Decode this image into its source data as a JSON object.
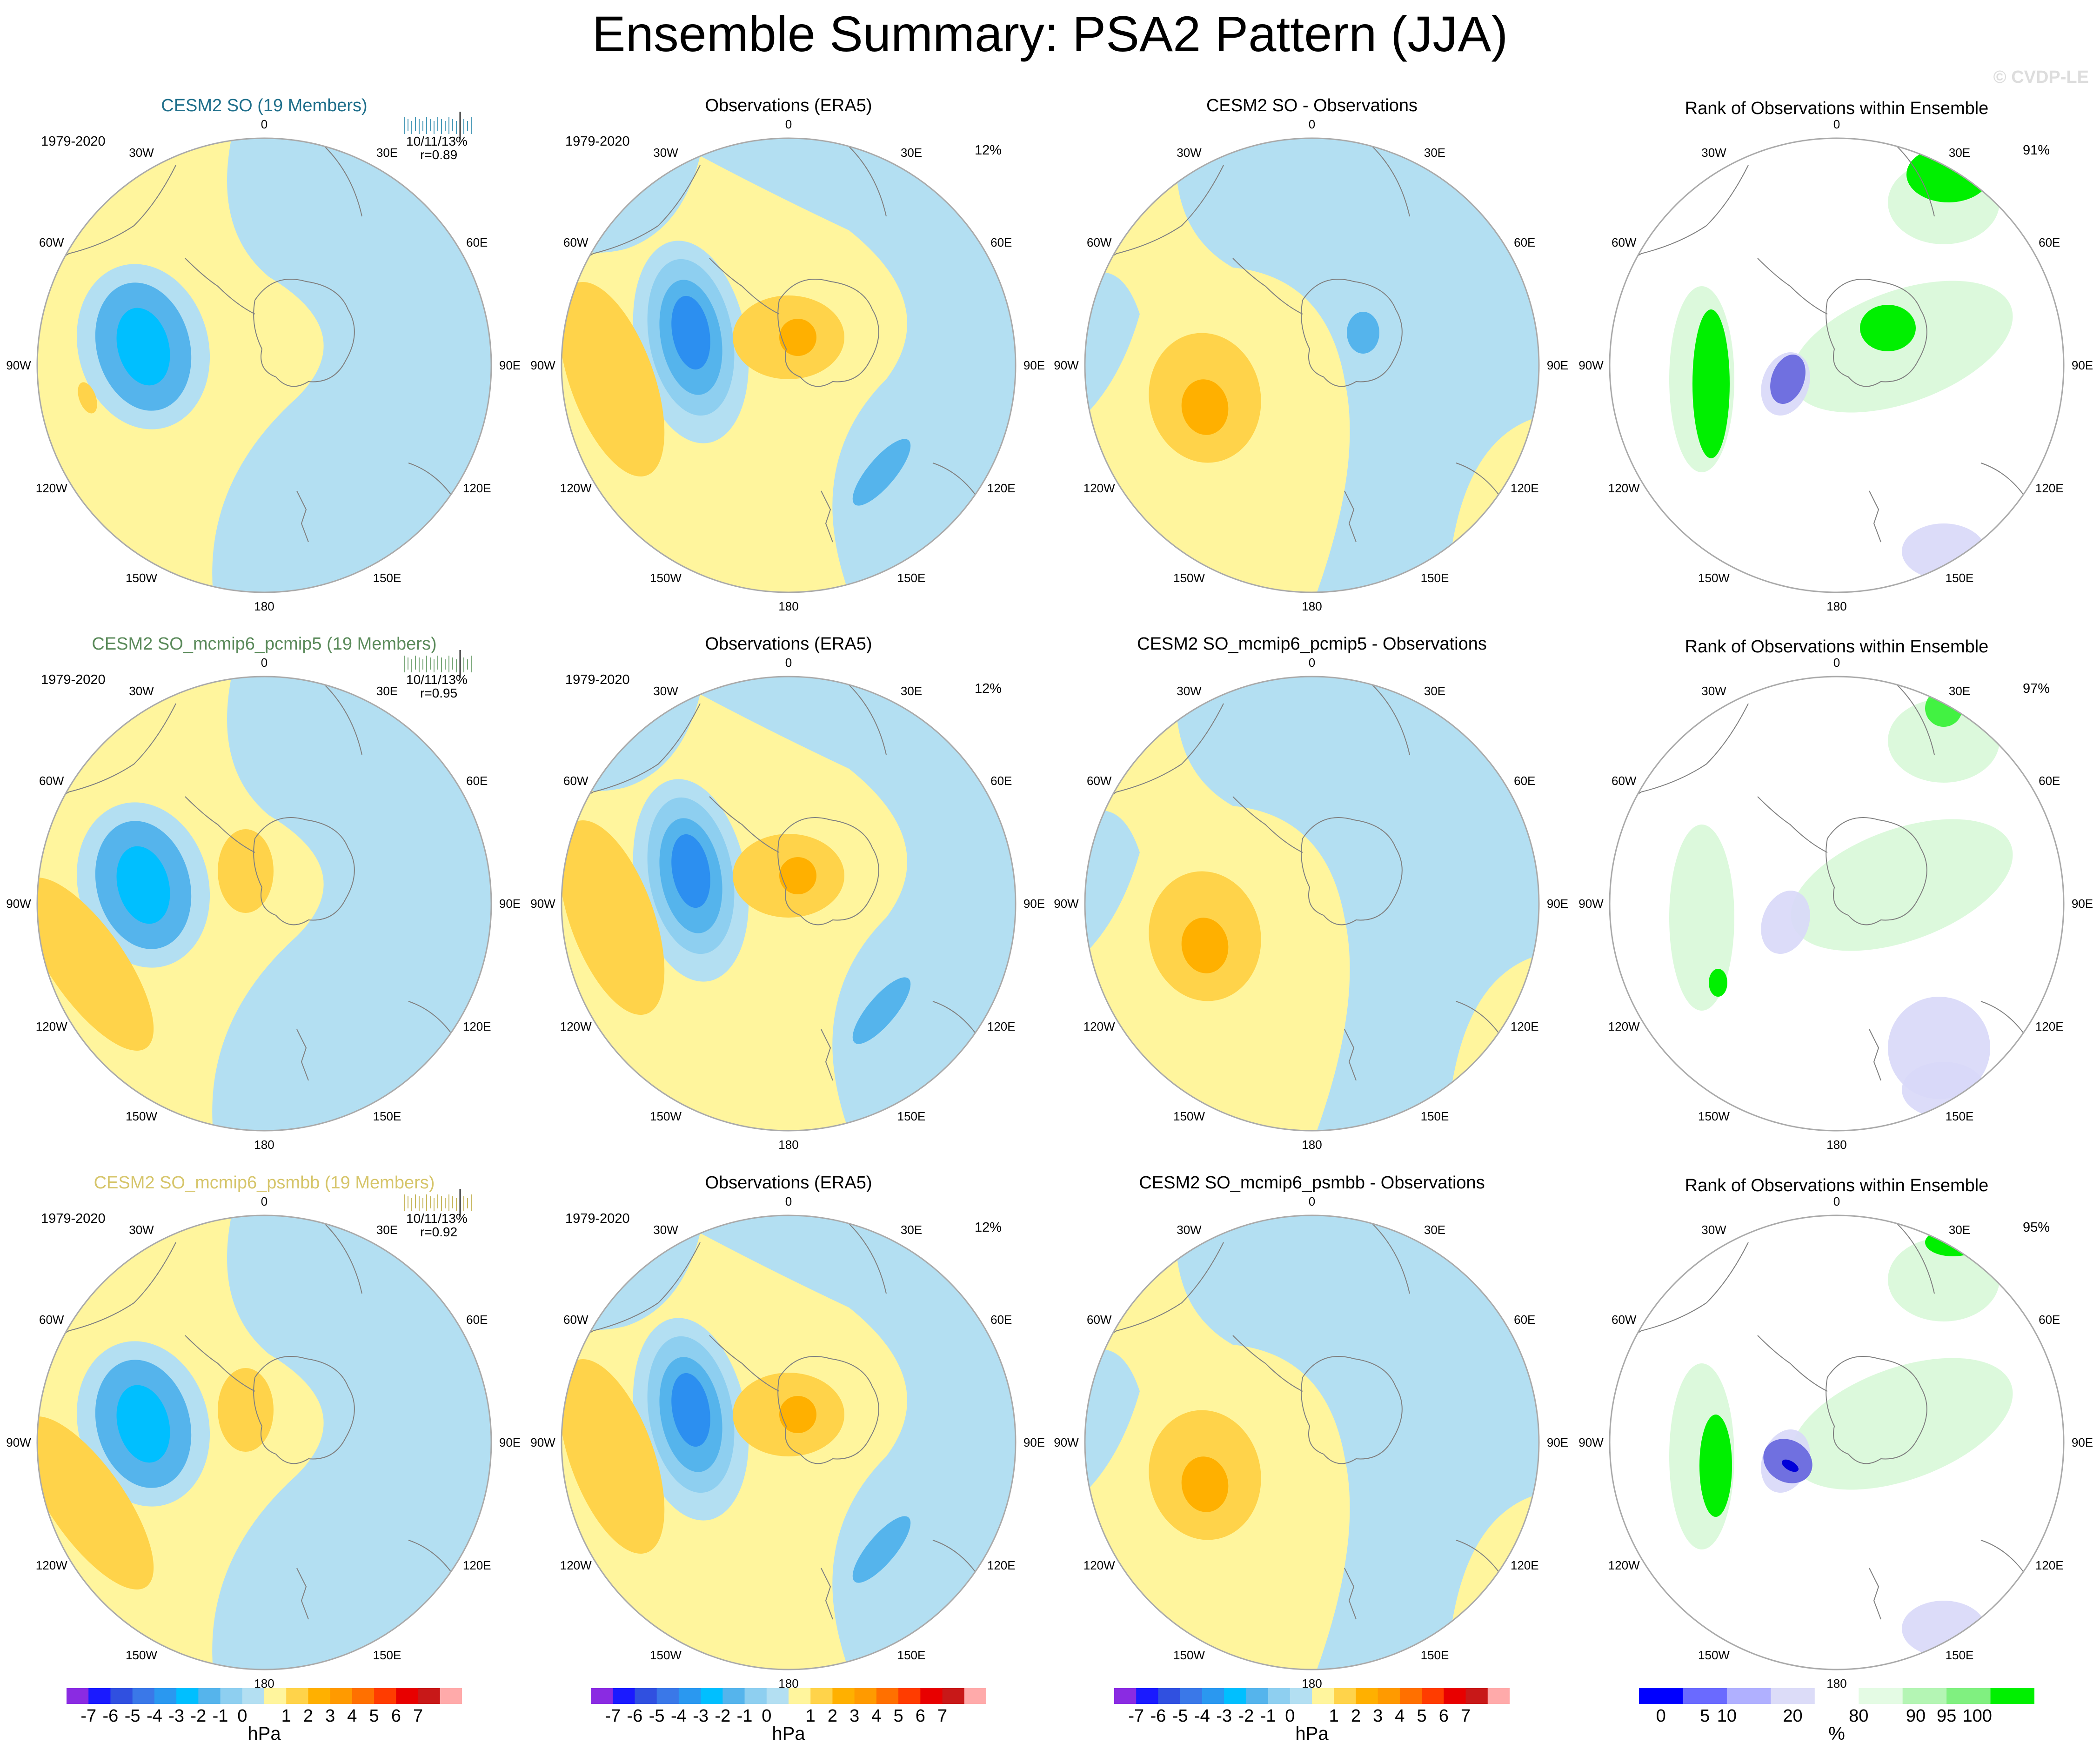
{
  "title": "Ensemble Summary: PSA2 Pattern (JJA)",
  "watermark": "© CVDP-LE",
  "colors": {
    "yellow": "#fff59d",
    "light_blue": "#b3dff2",
    "blue1": "#8ecff0",
    "blue2": "#55b4ec",
    "blue3": "#00bfff",
    "blue4": "#2c8ff0",
    "blue5": "#3a6fe0",
    "orange1": "#ffd34a",
    "orange2": "#ffb000",
    "orange3": "#ff9a00",
    "green_bright": "#00f000",
    "green_light": "#d8f8d8",
    "lavender": "#d8d8f8",
    "violet": "#7070e0",
    "dark_blue": "#0000d8",
    "continent": "#808080",
    "border": "#aaaaaa"
  },
  "longitude_labels": [
    "0",
    "30E",
    "60E",
    "90E",
    "120E",
    "150E",
    "180",
    "150W",
    "120W",
    "90W",
    "60W",
    "30W"
  ],
  "rows": [
    {
      "model_title": "CESM2 SO (19 Members)",
      "model_color": "#1f6f8b",
      "mini_line_color": "#4a9ab8",
      "stats_pct": "10/11/13%",
      "stats_r": "r=0.89",
      "period": "1979-2020",
      "obs_title": "Observations (ERA5)",
      "obs_period": "1979-2020",
      "obs_pct": "12%",
      "diff_title": "CESM2 SO - Observations",
      "rank_title": "Rank of Observations within Ensemble",
      "rank_pct": "91%"
    },
    {
      "model_title": "CESM2 SO_mcmip6_pcmip5 (19 Members)",
      "model_color": "#5a8a5a",
      "mini_line_color": "#7aa87a",
      "stats_pct": "10/11/13%",
      "stats_r": "r=0.95",
      "period": "1979-2020",
      "obs_title": "Observations (ERA5)",
      "obs_period": "1979-2020",
      "obs_pct": "12%",
      "diff_title": "CESM2 SO_mcmip6_pcmip5 - Observations",
      "rank_title": "Rank of Observations within Ensemble",
      "rank_pct": "97%"
    },
    {
      "model_title": "CESM2 SO_mcmip6_psmbb (19 Members)",
      "model_color": "#d6c56a",
      "mini_line_color": "#c8b860",
      "stats_pct": "10/11/13%",
      "stats_r": "r=0.92",
      "period": "1979-2020",
      "obs_title": "Observations (ERA5)",
      "obs_period": "1979-2020",
      "obs_pct": "12%",
      "diff_title": "CESM2 SO_mcmip6_psmbb - Observations",
      "rank_title": "Rank of Observations within Ensemble",
      "rank_pct": "95%"
    }
  ],
  "colorbar_hpa": {
    "colors": [
      "#8a2be2",
      "#1a1aff",
      "#3050e0",
      "#3a78e8",
      "#2a98f0",
      "#00bfff",
      "#55b4ec",
      "#8ecff0",
      "#b3dff2",
      "#fff59d",
      "#ffd34a",
      "#ffb000",
      "#ff9a00",
      "#ff7000",
      "#ff3c00",
      "#e80000",
      "#c81818",
      "#ffaaaa"
    ],
    "labels": [
      "-7",
      "-6",
      "-5",
      "-4",
      "-3",
      "-2",
      "-1",
      "0",
      "1",
      "2",
      "3",
      "4",
      "5",
      "6",
      "7"
    ],
    "unit": "hPa"
  },
  "colorbar_pct": {
    "colors": [
      "#0000ff",
      "#6a6aff",
      "#b0b0ff",
      "#dcdcf8",
      "#ffffff",
      "#e4fbe4",
      "#b4f5b4",
      "#80f080",
      "#00f000"
    ],
    "labels": [
      "0",
      "5",
      "10",
      "20",
      "80",
      "90",
      "95",
      "100"
    ],
    "unit": "%"
  }
}
